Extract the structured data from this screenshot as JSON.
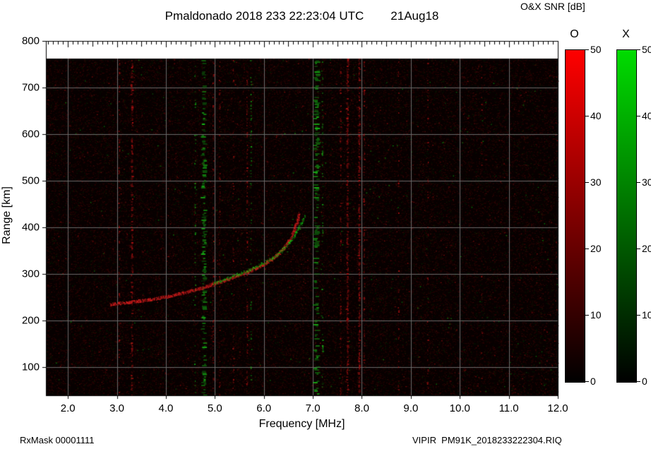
{
  "header": {
    "title": "Pmaldonado 2018 233 22:23:04 UTC",
    "date": "21Aug18",
    "colorbar_title": "O&X SNR [dB]"
  },
  "footer": {
    "rx_mask": "RxMask 00001111",
    "file": "VIPIR  PM91K_2018233222304.RIQ"
  },
  "chart_data": {
    "type": "heatmap",
    "title": "Pmaldonado 2018 233 22:23:04 UTC",
    "subtitle": "21Aug18",
    "xlabel": "Frequency [MHz]",
    "ylabel": "Range [km]",
    "xlim": [
      1.55,
      12.0
    ],
    "ylim": [
      40,
      800
    ],
    "x_ticks": [
      2.0,
      3.0,
      4.0,
      5.0,
      6.0,
      7.0,
      8.0,
      9.0,
      10.0,
      11.0,
      12.0
    ],
    "x_tick_labels": [
      "2.0",
      "3.0",
      "4.0",
      "5.0",
      "6.0",
      "7.0",
      "8.0",
      "9.0",
      "10.0",
      "11.0",
      "12.0"
    ],
    "y_ticks": [
      100,
      200,
      300,
      400,
      500,
      600,
      700,
      800
    ],
    "y_tick_labels": [
      "100",
      "200",
      "300",
      "400",
      "500",
      "600",
      "700",
      "800"
    ],
    "grid": true,
    "grid_color": "#6a6a6a",
    "background_color": "#070000",
    "colorbar_title": "O&X SNR [dB]",
    "colorbars": [
      {
        "label": "O",
        "top_color": "#ff0000",
        "bottom_color": "#000000",
        "range": [
          0,
          50
        ],
        "ticks": [
          0,
          10,
          20,
          30,
          40,
          50
        ],
        "tick_labels": [
          "0",
          "10",
          "20",
          "30",
          "40",
          "50"
        ]
      },
      {
        "label": "X",
        "top_color": "#00dc00",
        "bottom_color": "#000000",
        "range": [
          0,
          50
        ],
        "ticks": [
          0,
          10,
          20,
          30,
          40,
          50
        ],
        "tick_labels": [
          "0",
          "10",
          "20",
          "30",
          "40",
          "50"
        ]
      }
    ],
    "o_trace": [
      [
        2.85,
        236
      ],
      [
        3.05,
        238
      ],
      [
        3.25,
        240
      ],
      [
        3.45,
        243
      ],
      [
        3.65,
        246
      ],
      [
        3.85,
        249
      ],
      [
        4.05,
        253
      ],
      [
        4.25,
        258
      ],
      [
        4.45,
        263
      ],
      [
        4.65,
        269
      ],
      [
        4.85,
        275
      ],
      [
        5.05,
        282
      ],
      [
        5.25,
        289
      ],
      [
        5.45,
        297
      ],
      [
        5.65,
        305
      ],
      [
        5.85,
        314
      ],
      [
        6.0,
        322
      ],
      [
        6.15,
        332
      ],
      [
        6.28,
        343
      ],
      [
        6.4,
        356
      ],
      [
        6.5,
        371
      ],
      [
        6.58,
        387
      ],
      [
        6.64,
        403
      ],
      [
        6.69,
        418
      ],
      [
        6.71,
        430
      ]
    ],
    "x_trace": [
      [
        4.95,
        280
      ],
      [
        5.2,
        290
      ],
      [
        5.45,
        300
      ],
      [
        5.7,
        310
      ],
      [
        5.95,
        322
      ],
      [
        6.15,
        334
      ],
      [
        6.35,
        350
      ],
      [
        6.52,
        368
      ],
      [
        6.65,
        388
      ],
      [
        6.75,
        408
      ],
      [
        6.82,
        424
      ]
    ],
    "rfi_lines": [
      {
        "freq": 3.05,
        "mode": "O",
        "intensity": 0.35,
        "width": 2
      },
      {
        "freq": 3.31,
        "mode": "O",
        "intensity": 0.75,
        "width": 3
      },
      {
        "freq": 4.6,
        "mode": "X",
        "intensity": 0.25,
        "width": 2
      },
      {
        "freq": 4.78,
        "mode": "X",
        "intensity": 0.65,
        "width": 6
      },
      {
        "freq": 4.97,
        "mode": "O",
        "intensity": 0.35,
        "width": 2
      },
      {
        "freq": 5.1,
        "mode": "O",
        "intensity": 0.3,
        "width": 2
      },
      {
        "freq": 5.38,
        "mode": "O",
        "intensity": 0.25,
        "width": 2
      },
      {
        "freq": 5.66,
        "mode": "O",
        "intensity": 0.4,
        "width": 2
      },
      {
        "freq": 5.74,
        "mode": "X",
        "intensity": 0.3,
        "width": 2
      },
      {
        "freq": 7.08,
        "mode": "X",
        "intensity": 0.65,
        "width": 7
      },
      {
        "freq": 7.2,
        "mode": "X",
        "intensity": 0.3,
        "width": 2
      },
      {
        "freq": 7.57,
        "mode": "O",
        "intensity": 0.45,
        "width": 2
      },
      {
        "freq": 7.71,
        "mode": "O",
        "intensity": 0.85,
        "width": 3
      },
      {
        "freq": 7.95,
        "mode": "O",
        "intensity": 0.8,
        "width": 3
      },
      {
        "freq": 8.05,
        "mode": "O",
        "intensity": 0.45,
        "width": 2
      },
      {
        "freq": 8.75,
        "mode": "O",
        "intensity": 0.2,
        "width": 2
      },
      {
        "freq": 9.35,
        "mode": "O",
        "intensity": 0.18,
        "width": 2
      },
      {
        "freq": 10.45,
        "mode": "O",
        "intensity": 0.15,
        "width": 2
      }
    ],
    "noise": {
      "red_dots": 42000,
      "green_dots": 7000,
      "bright_dots": 900
    }
  }
}
